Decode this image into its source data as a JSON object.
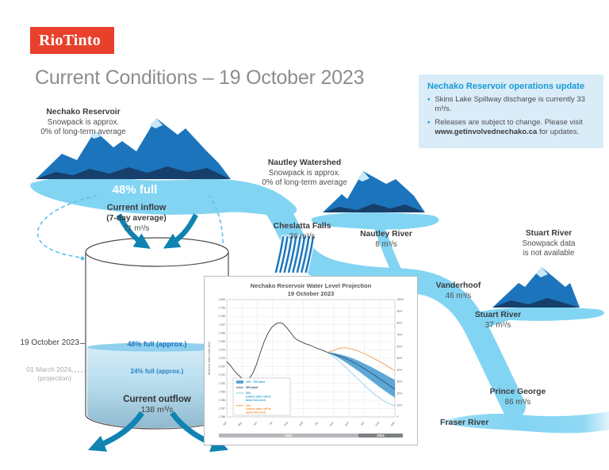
{
  "colors": {
    "brand_red": "#e8402b",
    "river_blue": "#82d4f3",
    "mountain_blue": "#1c75bc",
    "mountain_dark_navy": "#173f6b",
    "snow_light": "#c9e8f9",
    "arrow_teal": "#0f83b2",
    "info_box_bg": "#d9ecf8",
    "info_title_blue": "#169bd7",
    "level_text_blue": "#1c75bc",
    "title_gray": "#8b8d90",
    "band_blue": "#4d9dd0",
    "median_navy": "#1b4e79",
    "p90_light_blue": "#74c3ea",
    "p10_orange": "#f0913c"
  },
  "logo": {
    "text": "RioTinto"
  },
  "title": "Current Conditions – 19 October 2023",
  "info_box": {
    "title": "Nechako Reservoir operations update",
    "bullet1": "Skins Lake Spillway discharge is currently 33 m³/s.",
    "bullet2_pre": "Releases are subject to change. Please visit ",
    "bullet2_bold": "www.getinvolvednechako.ca",
    "bullet2_post": " for updates."
  },
  "mountains": {
    "nechako": {
      "name": "Nechako Reservoir",
      "line1": "Snowpack is approx.",
      "line2": "0% of long-term average"
    },
    "nautley": {
      "name": "Nautley Watershed",
      "line1": "Snowpack is approx.",
      "line2": "0% of long-term average"
    },
    "stuart": {
      "name": "Stuart River",
      "line1": "Snowpack data",
      "line2": "is not available"
    }
  },
  "reservoir": {
    "percent_full": "48% full",
    "inflow_title": "Current inflow",
    "inflow_note": "(7-day average)",
    "inflow_value": "71 m³/s"
  },
  "cylinder": {
    "current_date": "19 October 2023",
    "current_level": "48% full (approx.)",
    "projection_date": "01 March 2024",
    "projection_note": "(projection)",
    "projection_level": "24% full (approx.)",
    "outflow_title": "Current outflow",
    "outflow_value": "138 m³/s"
  },
  "rivers": {
    "cheslatta": {
      "name": "Cheslatta Falls",
      "value": "36 m³/s"
    },
    "nautley": {
      "name": "Nautley River",
      "value": "8 m³/s"
    },
    "vanderhoof": {
      "name": "Vanderhoof",
      "value": "46 m³/s"
    },
    "stuart": {
      "name": "Stuart River",
      "value": "37 m³/s"
    },
    "prince_george": {
      "name": "Prince George",
      "value": "86 m³/s"
    },
    "fraser": {
      "name": "Fraser River"
    }
  },
  "chart_data": {
    "type": "line",
    "title": "Nechako Reservoir Water Level Projection",
    "subtitle": "19 October 2023",
    "ylabel_left": "Reservoir Water Level (feet)",
    "ylim": [
      2786,
      2800
    ],
    "right_axis_percent": [
      "100%",
      "90%",
      "80%",
      "70%",
      "60%",
      "50%",
      "40%",
      "30%",
      "20%",
      "10%",
      "0"
    ],
    "x_months": [
      "Apr",
      "May",
      "Jun",
      "Jul",
      "Aug",
      "Sep",
      "Oct",
      "Nov",
      "Dec",
      "Jan",
      "Feb",
      "Mar"
    ],
    "grid": true,
    "legend_position": "lower-left",
    "year_bands": [
      {
        "label": "2023",
        "from": 0,
        "to": 8.6,
        "color": "#b4b6b9"
      },
      {
        "label": "2024",
        "from": 8.6,
        "to": 11,
        "color": "#7d8083"
      }
    ],
    "band": {
      "name": "25% - 75% band",
      "color": "#4d9dd0",
      "edge_color": "#6db6e0",
      "x": [
        6.6,
        7.0,
        7.4,
        7.8,
        8.2,
        8.6,
        9.0,
        9.4,
        9.8,
        10.2,
        10.6,
        11.0
      ],
      "upper": [
        2793.7,
        2793.6,
        2793.45,
        2793.25,
        2793.0,
        2792.7,
        2792.35,
        2792.0,
        2791.6,
        2791.2,
        2790.8,
        2790.4
      ],
      "lower": [
        2793.7,
        2793.35,
        2792.95,
        2792.5,
        2792.0,
        2791.5,
        2790.95,
        2790.4,
        2789.85,
        2789.3,
        2788.8,
        2788.3
      ]
    },
    "series": [
      {
        "name": "90% chance water will be above this level",
        "color": "#74c3ea",
        "width": 0.7,
        "x": [
          6.6,
          7.0,
          7.4,
          7.8,
          8.2,
          8.6,
          9.0,
          9.4,
          9.8,
          10.2,
          10.6,
          11.0
        ],
        "values": [
          2793.7,
          2793.15,
          2792.55,
          2791.9,
          2791.2,
          2790.5,
          2789.8,
          2789.1,
          2788.5,
          2788.0,
          2787.6,
          2787.3
        ]
      },
      {
        "name": "50% band",
        "color": "#1b4e79",
        "width": 0.8,
        "x": [
          6.6,
          7.0,
          7.4,
          7.8,
          8.2,
          8.6,
          9.0,
          9.4,
          9.8,
          10.2,
          10.6,
          11.0
        ],
        "values": [
          2793.7,
          2793.5,
          2793.25,
          2792.95,
          2792.6,
          2792.2,
          2791.75,
          2791.3,
          2790.8,
          2790.3,
          2789.8,
          2789.3
        ]
      },
      {
        "name": "10% chance water will be above this level",
        "color": "#f0913c",
        "width": 0.8,
        "x": [
          6.6,
          7.0,
          7.4,
          7.8,
          8.2,
          8.6,
          9.0,
          9.4,
          9.8,
          10.2,
          10.6,
          11.0
        ],
        "values": [
          2793.7,
          2793.95,
          2794.2,
          2794.25,
          2794.1,
          2793.85,
          2793.55,
          2793.2,
          2792.8,
          2792.4,
          2791.95,
          2791.5
        ]
      },
      {
        "name": "Historical",
        "color": "#3d3e40",
        "width": 0.9,
        "x": [
          0,
          0.25,
          0.5,
          0.75,
          1.0,
          1.2,
          1.45,
          1.7,
          1.95,
          2.2,
          2.45,
          2.7,
          2.95,
          3.2,
          3.45,
          3.7,
          3.95,
          4.2,
          4.45,
          4.7,
          4.95,
          5.2,
          5.45,
          5.7,
          5.95,
          6.2,
          6.45,
          6.6
        ],
        "values": [
          2792.6,
          2792.1,
          2791.5,
          2791.0,
          2790.6,
          2790.4,
          2790.5,
          2791.2,
          2792.3,
          2793.7,
          2795.0,
          2796.0,
          2796.7,
          2797.1,
          2797.25,
          2797.1,
          2796.6,
          2796.0,
          2795.4,
          2795.1,
          2794.9,
          2794.7,
          2794.55,
          2794.35,
          2794.15,
          2794.0,
          2793.8,
          2793.7
        ]
      }
    ],
    "legend": [
      {
        "swatch": "area",
        "color": "#4d9dd0",
        "text_color": "#2da0d9",
        "lines": [
          "25% - 75% band"
        ]
      },
      {
        "swatch": "line",
        "color": "#1b4e79",
        "text_color": "#1b4e79",
        "lines": [
          "50% band"
        ]
      },
      {
        "swatch": "line",
        "color": "#74c3ea",
        "text_color": "#2da0d9",
        "lines": [
          "90%",
          "(chance water will be",
          "above this level)"
        ]
      },
      {
        "swatch": "line",
        "color": "#f0913c",
        "text_color": "#f0913c",
        "lines": [
          "10%",
          "(chance water will be",
          "above this level)"
        ]
      }
    ]
  }
}
